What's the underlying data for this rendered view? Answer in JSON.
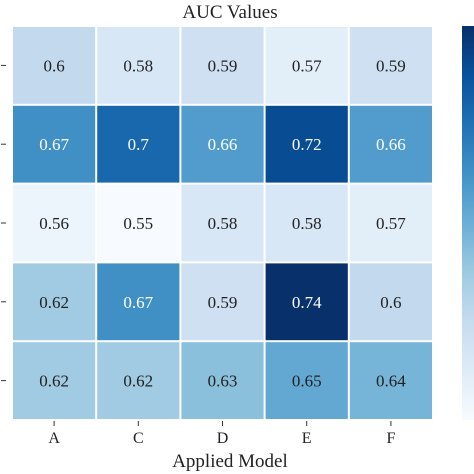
{
  "chart_data": {
    "type": "heatmap",
    "title": "AUC Values",
    "xlabel": "Applied Model",
    "ylabel": "",
    "x_categories": [
      "A",
      "C",
      "D",
      "E",
      "F"
    ],
    "y_categories": [
      "",
      "",
      "",
      "",
      ""
    ],
    "values": [
      [
        0.6,
        0.58,
        0.59,
        0.57,
        0.59
      ],
      [
        0.67,
        0.7,
        0.66,
        0.72,
        0.66
      ],
      [
        0.56,
        0.55,
        0.58,
        0.58,
        0.57
      ],
      [
        0.62,
        0.67,
        0.59,
        0.74,
        0.6
      ],
      [
        0.62,
        0.62,
        0.63,
        0.65,
        0.64
      ]
    ],
    "color_range": [
      0.55,
      0.74
    ],
    "colormap": "Blues",
    "colors": {
      "low": "#f7fbff",
      "high": "#08306b",
      "gap": "#ffffff"
    },
    "colorbar": true
  }
}
